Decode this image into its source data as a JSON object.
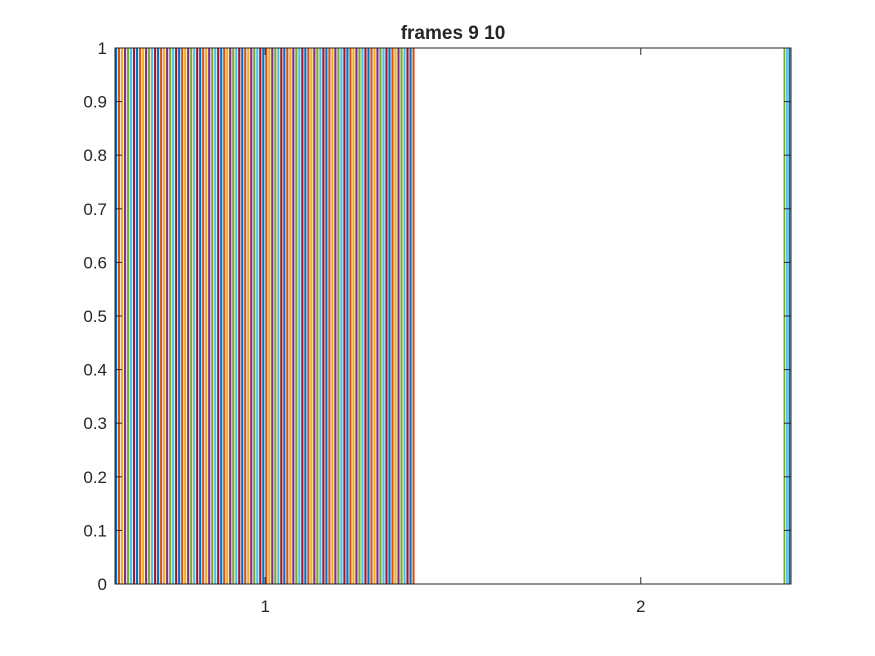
{
  "chart_data": {
    "type": "bar",
    "title": "frames 9 10",
    "xlabel": "",
    "ylabel": "",
    "xlim": [
      0.6,
      2.4
    ],
    "ylim": [
      0,
      1
    ],
    "x_ticks": [
      "1",
      "2"
    ],
    "y_ticks": [
      "0",
      "0.1",
      "0.2",
      "0.3",
      "0.4",
      "0.5",
      "0.6",
      "0.7",
      "0.8",
      "0.9",
      "1"
    ],
    "grid": false,
    "legend": "none",
    "colors": [
      "#0072BD",
      "#D95319",
      "#EDB120",
      "#7E2F8E",
      "#77AC30",
      "#4DBEEE",
      "#A2142F"
    ],
    "series": [
      {
        "x": 1,
        "values": [
          1,
          1,
          1,
          1,
          1,
          1,
          1,
          1,
          1,
          1,
          1,
          1,
          1,
          1,
          1,
          1,
          1,
          1,
          1,
          1,
          1,
          1,
          1,
          1,
          1,
          1,
          1,
          1,
          1,
          1,
          1,
          1,
          1,
          1,
          1,
          1,
          1,
          1,
          1,
          1,
          1,
          1,
          1,
          1,
          1,
          1,
          1,
          1,
          1,
          1,
          1,
          1,
          1,
          1,
          1,
          1,
          1,
          1,
          1,
          1,
          1,
          1,
          1,
          1,
          1,
          1,
          1,
          1,
          1,
          1,
          1,
          1,
          1,
          1,
          1,
          1,
          1,
          1,
          1,
          1,
          1,
          1,
          1,
          1,
          1,
          1,
          1,
          1,
          1,
          1,
          1,
          1,
          1,
          1,
          1,
          1,
          1,
          1,
          1,
          1
        ]
      },
      {
        "x": 2,
        "values": [
          1,
          1,
          1
        ]
      }
    ]
  }
}
